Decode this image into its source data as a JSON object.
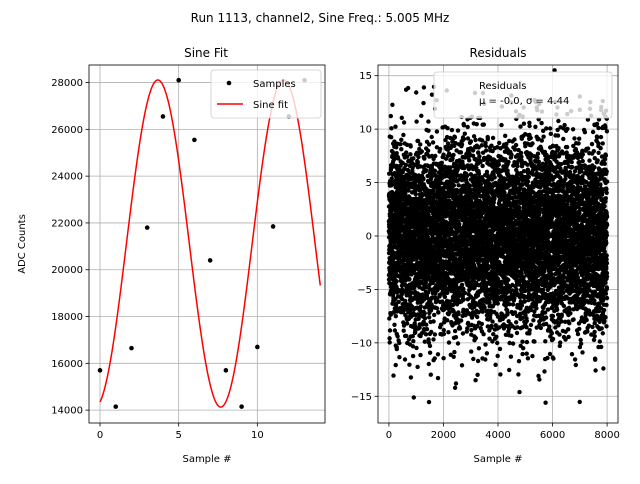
{
  "figure": {
    "suptitle": "Run 1113, channel2, Sine Freq.: 5.005 MHz"
  },
  "chart_data": [
    {
      "type": "scatter",
      "title": "Sine Fit",
      "xlabel": "Sample #",
      "ylabel": "ADC Counts",
      "xlim": [
        -0.7,
        14.3
      ],
      "ylim": [
        13450,
        28750
      ],
      "x_ticks": [
        0,
        5,
        10
      ],
      "y_ticks": [
        14000,
        16000,
        18000,
        20000,
        22000,
        24000,
        26000,
        28000
      ],
      "grid": true,
      "legend_position": "top-right",
      "series": [
        {
          "name": "Samples",
          "style": "points",
          "color": "#000000",
          "x": [
            0,
            1,
            2,
            3,
            4,
            5,
            6,
            7,
            8,
            9,
            10,
            11,
            12,
            13
          ],
          "y": [
            15700,
            14150,
            16650,
            21800,
            26550,
            28100,
            25550,
            20400,
            15700,
            14150,
            16700,
            21850,
            26550,
            28100
          ]
        },
        {
          "name": "Sine fit",
          "style": "line",
          "color": "#ff0000",
          "function": "sine",
          "offset": 21120,
          "amplitude": 6990,
          "cycles_per_sample": 0.1251,
          "phase_rad": -1.32,
          "x_range": [
            0,
            14
          ]
        }
      ]
    },
    {
      "type": "scatter",
      "title": "Residuals",
      "xlabel": "Sample #",
      "ylabel": "",
      "xlim": [
        -400,
        8400
      ],
      "ylim": [
        -17.5,
        16
      ],
      "x_ticks": [
        0,
        2000,
        4000,
        6000,
        8000
      ],
      "y_ticks": [
        -15,
        -10,
        -5,
        0,
        5,
        10,
        15
      ],
      "grid": true,
      "legend_position": "top-right",
      "series": [
        {
          "name": "Residuals",
          "style": "points",
          "color": "#000000",
          "count": 8000,
          "x_range": [
            0,
            8000
          ],
          "mean": -0.0,
          "std": 4.44
        }
      ],
      "legend_stats": "μ = -0.0, σ = 4.44"
    }
  ]
}
